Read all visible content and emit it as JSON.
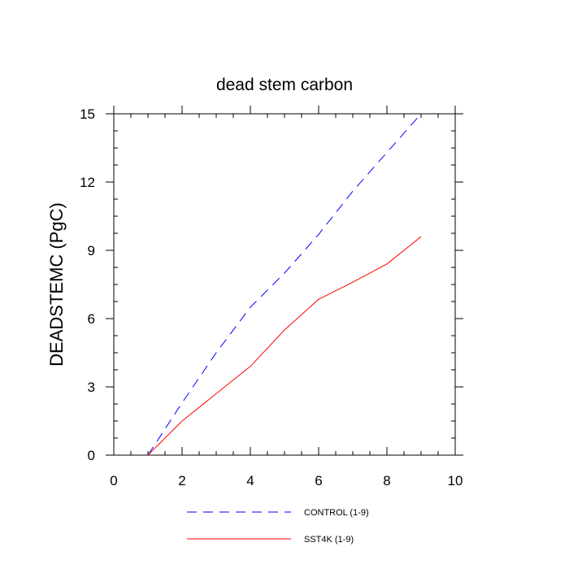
{
  "chart_data": {
    "type": "line",
    "title": "dead stem carbon",
    "xlabel": "",
    "ylabel": "DEADSTEMC  (PgC)",
    "xlim": [
      0,
      10
    ],
    "ylim": [
      0,
      15
    ],
    "xticks": [
      0,
      2,
      4,
      6,
      8,
      10
    ],
    "xtick_labels": [
      "0",
      "2",
      "4",
      "6",
      "8",
      "10"
    ],
    "yticks": [
      0,
      3,
      6,
      9,
      12,
      15
    ],
    "ytick_labels": [
      "0",
      "3",
      "6",
      "9",
      "12",
      "15"
    ],
    "x_minor_step": 0.5,
    "y_minor_step": 0.75,
    "grid": false,
    "legend_position": "bottom",
    "series": [
      {
        "name": "CONTROL (1-9)",
        "color": "#0000ff",
        "style": "dashed",
        "x": [
          1,
          2,
          3,
          4,
          5,
          6,
          7,
          8,
          9
        ],
        "y": [
          0.0,
          2.3,
          4.5,
          6.5,
          8.0,
          9.7,
          11.6,
          13.3,
          15.0
        ]
      },
      {
        "name": "SST4K (1-9)",
        "color": "#ff0000",
        "style": "solid",
        "x": [
          1,
          2,
          3,
          4,
          5,
          6,
          7,
          8,
          9
        ],
        "y": [
          0.0,
          1.5,
          2.7,
          3.9,
          5.5,
          6.85,
          7.6,
          8.4,
          9.6
        ]
      }
    ]
  }
}
